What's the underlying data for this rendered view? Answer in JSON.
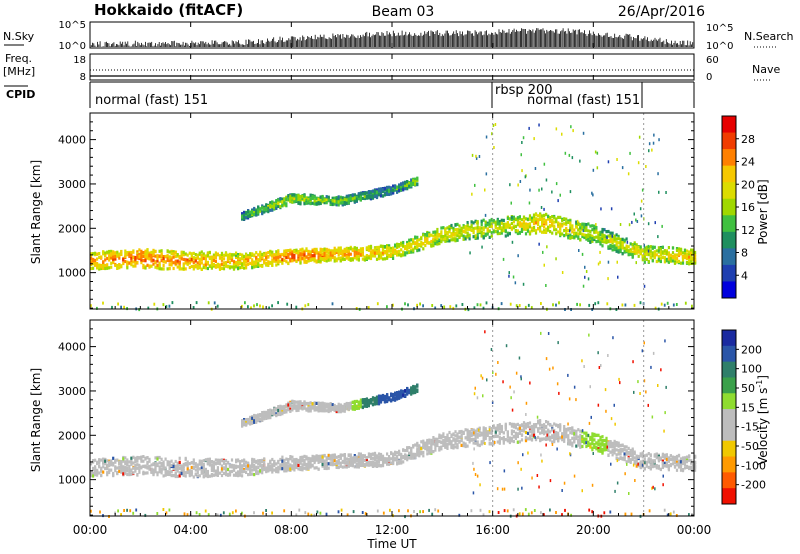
{
  "header": {
    "title": "Hokkaido (fitACF)",
    "beam": "Beam 03",
    "date": "26/Apr/2016"
  },
  "sky_panel": {
    "label": "N.Sky",
    "left_ticks": [
      "10^5",
      "10^0"
    ],
    "right_ticks": [
      "10^5",
      "10^0"
    ],
    "right_label": "N.Search",
    "series": {
      "name": "N.Sky",
      "hours": [
        0,
        1,
        2,
        3,
        4,
        5,
        6,
        7,
        8,
        9,
        10,
        11,
        12,
        13,
        14,
        15,
        16,
        17,
        18,
        19,
        20,
        21,
        22,
        23,
        24
      ],
      "level": [
        0.15,
        0.18,
        0.18,
        0.18,
        0.18,
        0.2,
        0.22,
        0.3,
        0.4,
        0.45,
        0.5,
        0.55,
        0.6,
        0.62,
        0.62,
        0.62,
        0.65,
        0.7,
        0.72,
        0.7,
        0.6,
        0.5,
        0.4,
        0.25,
        0.2
      ]
    }
  },
  "freq_panel": {
    "label_line1": "Freq.",
    "label_line2": "[MHz]",
    "left_ticks": [
      "18",
      "8"
    ],
    "right_ticks": [
      "60",
      "0"
    ],
    "right_label": "Nave"
  },
  "cpid_panel": {
    "label": "CPID",
    "modes": [
      {
        "name": "normal (fast) 151",
        "start_hour": 0,
        "end_hour": 16
      },
      {
        "name": "rbsp 200",
        "start_hour": 16,
        "end_hour": 22
      },
      {
        "name": "normal (fast) 151",
        "start_hour": 22,
        "end_hour": 24
      }
    ],
    "second_label": "normal (fast) 151"
  },
  "axes": {
    "y_label": "Slant Range [km]",
    "y_ticks": [
      1000,
      2000,
      3000,
      4000
    ],
    "y_range": [
      180,
      4600
    ],
    "x_label": "Time UT",
    "x_ticks": [
      "00:00",
      "04:00",
      "08:00",
      "12:00",
      "16:00",
      "20:00",
      "00:00"
    ],
    "x_range_hours": [
      0,
      24
    ]
  },
  "power_colorbar": {
    "label": "Power [dB]",
    "ticks": [
      "28",
      "24",
      "20",
      "16",
      "12",
      "8",
      "4"
    ],
    "colors": [
      "#e60000",
      "#f03c00",
      "#ff8000",
      "#f6c800",
      "#dcdc00",
      "#a0d800",
      "#40c040",
      "#1f8f5f",
      "#2a6fa0",
      "#1f3fb0",
      "#0000dd"
    ]
  },
  "velocity_colorbar": {
    "label": "Velocity [m s^-1]",
    "ticks": [
      "200",
      "100",
      "50",
      "15",
      "-15",
      "-50",
      "-100",
      "-200"
    ],
    "colors": [
      "#1a2aa0",
      "#2a55a8",
      "#2f7f6a",
      "#3aa04a",
      "#8fdc30",
      "#bdbdbd",
      "#bdbdbd",
      "#f0c800",
      "#ff9a00",
      "#ff5a00",
      "#f01000"
    ]
  },
  "chart_data": [
    {
      "type": "heatmap",
      "name": "Power",
      "xlabel": "Time UT",
      "ylabel": "Slant Range [km]",
      "x_range_hours": [
        0,
        24
      ],
      "y_range_km": [
        180,
        4600
      ],
      "value_label": "Power [dB]",
      "bands": [
        {
          "hours": [
            0,
            2,
            4,
            6,
            8,
            10,
            12,
            14,
            16,
            18,
            20,
            22,
            24
          ],
          "center_km": [
            1300,
            1350,
            1300,
            1300,
            1400,
            1450,
            1500,
            1900,
            2050,
            2150,
            1900,
            1450,
            1400
          ],
          "width_km": [
            380,
            420,
            420,
            360,
            320,
            300,
            300,
            360,
            420,
            460,
            400,
            360,
            340
          ],
          "power_db": [
            24,
            26,
            24,
            22,
            26,
            24,
            22,
            20,
            18,
            22,
            18,
            20,
            22
          ]
        },
        {
          "hours": [
            6,
            8,
            10,
            12,
            13
          ],
          "center_km": [
            2300,
            2700,
            2650,
            2900,
            3100
          ],
          "width_km": [
            160,
            220,
            180,
            180,
            160
          ],
          "power_db": [
            14,
            18,
            16,
            12,
            18
          ]
        }
      ]
    },
    {
      "type": "heatmap",
      "name": "Velocity",
      "xlabel": "Time UT",
      "ylabel": "Slant Range [km]",
      "x_range_hours": [
        0,
        24
      ],
      "y_range_km": [
        180,
        4600
      ],
      "value_label": "Velocity [m s^-1]",
      "bands": [
        {
          "hours": [
            0,
            2,
            4,
            6,
            8,
            10,
            12,
            14,
            16,
            18,
            20,
            22,
            24
          ],
          "center_km": [
            1300,
            1350,
            1300,
            1300,
            1400,
            1450,
            1500,
            1900,
            2050,
            2150,
            1900,
            1450,
            1400
          ],
          "width_km": [
            380,
            420,
            420,
            360,
            320,
            300,
            300,
            360,
            420,
            460,
            400,
            360,
            340
          ],
          "velocity": [
            0,
            0,
            0,
            0,
            0,
            0,
            0,
            0,
            0,
            0,
            20,
            0,
            0
          ]
        },
        {
          "hours": [
            6,
            8,
            10,
            12,
            13
          ],
          "center_km": [
            2300,
            2700,
            2650,
            2900,
            3100
          ],
          "width_km": [
            160,
            220,
            180,
            180,
            160
          ],
          "velocity": [
            0,
            0,
            -10,
            120,
            60
          ]
        }
      ]
    }
  ]
}
